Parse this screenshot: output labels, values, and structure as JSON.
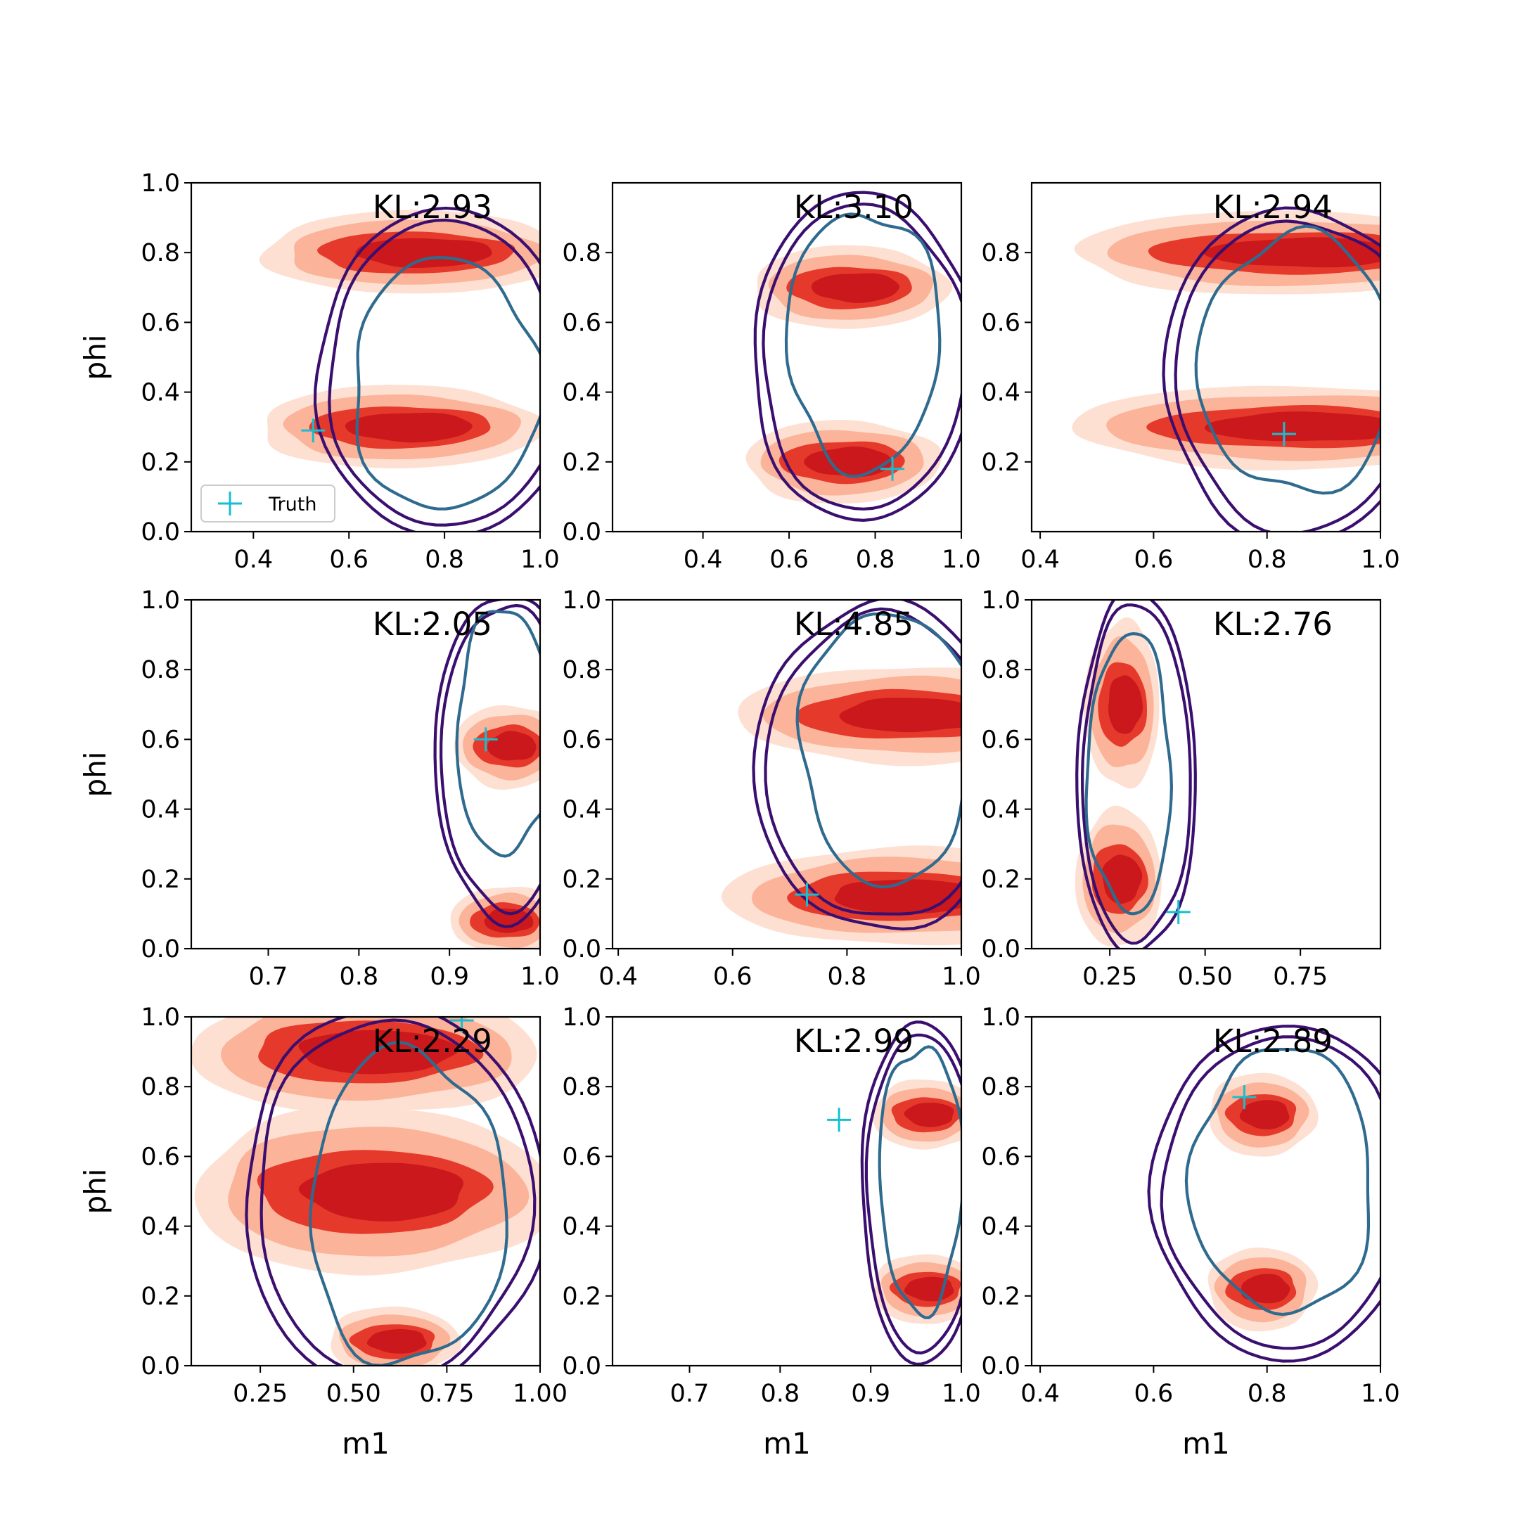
{
  "figure": {
    "ylabel": "phi",
    "xlabel": "m1",
    "legend_label": "Truth",
    "colors": {
      "truth": "#17becf",
      "outer_contour": "#3b0f6f",
      "inner_contour": "#2f6b8e",
      "kde_light": "#fde0d2",
      "kde_mid": "#fbb49a",
      "kde_dark": "#e53a2b",
      "kde_darkest": "#cb181d"
    }
  },
  "chart_data": [
    {
      "type": "contour",
      "kl": "KL:2.93",
      "truth": [
        0.525,
        0.29
      ],
      "xlim": [
        0.27,
        1.0
      ],
      "ylim": [
        0.0,
        1.0
      ],
      "xticks": [
        0.4,
        0.6,
        0.8,
        1.0
      ],
      "xtick_labels": [
        "0.4",
        "0.6",
        "0.8",
        "1.0"
      ],
      "yticks": [
        0.0,
        0.2,
        0.4,
        0.6,
        0.8,
        1.0
      ],
      "ytick_labels": [
        "0.0",
        "0.2",
        "0.4",
        "0.6",
        "0.8",
        "1.0"
      ],
      "modes": [
        0.8,
        0.3
      ],
      "legend": "lower-left",
      "ylabel": "phi",
      "xlabel": ""
    },
    {
      "type": "contour",
      "kl": "KL:3.10",
      "truth": [
        0.84,
        0.18
      ],
      "xlim": [
        0.19,
        1.0
      ],
      "ylim": [
        0.0,
        1.0
      ],
      "xticks": [
        0.4,
        0.6,
        0.8,
        1.0
      ],
      "xtick_labels": [
        "0.4",
        "0.6",
        "0.8",
        "1.0"
      ],
      "yticks": [
        0.0,
        0.2,
        0.4,
        0.6,
        0.8
      ],
      "ytick_labels": [
        "0.0",
        "0.2",
        "0.4",
        "0.6",
        "0.8"
      ],
      "modes": [
        0.7,
        0.2
      ],
      "ylabel": "",
      "xlabel": ""
    },
    {
      "type": "contour",
      "kl": "KL:2.94",
      "truth": [
        0.83,
        0.28
      ],
      "xlim": [
        0.385,
        1.0
      ],
      "ylim": [
        0.0,
        1.0
      ],
      "xticks": [
        0.4,
        0.6,
        0.8,
        1.0
      ],
      "xtick_labels": [
        "0.4",
        "0.6",
        "0.8",
        "1.0"
      ],
      "yticks": [
        0.2,
        0.4,
        0.6,
        0.8
      ],
      "ytick_labels": [
        "0.2",
        "0.4",
        "0.6",
        "0.8"
      ],
      "modes": [
        0.8,
        0.3
      ],
      "ylabel": "",
      "xlabel": ""
    },
    {
      "type": "contour",
      "kl": "KL:2.05",
      "truth": [
        0.94,
        0.6
      ],
      "xlim": [
        0.615,
        1.0
      ],
      "ylim": [
        0.0,
        1.0
      ],
      "xticks": [
        0.7,
        0.8,
        0.9,
        1.0
      ],
      "xtick_labels": [
        "0.7",
        "0.8",
        "0.9",
        "1.0"
      ],
      "yticks": [
        0.0,
        0.2,
        0.4,
        0.6,
        0.8,
        1.0
      ],
      "ytick_labels": [
        "0.0",
        "0.2",
        "0.4",
        "0.6",
        "0.8",
        "1.0"
      ],
      "modes": [
        0.58,
        0.08
      ],
      "ylabel": "phi",
      "xlabel": ""
    },
    {
      "type": "contour",
      "kl": "KL:4.85",
      "truth": [
        0.73,
        0.155
      ],
      "xlim": [
        0.39,
        1.0
      ],
      "ylim": [
        0.0,
        1.0
      ],
      "xticks": [
        0.4,
        0.6,
        0.8,
        1.0
      ],
      "xtick_labels": [
        "0.4",
        "0.6",
        "0.8",
        "1.0"
      ],
      "yticks": [
        0.0,
        0.2,
        0.4,
        0.6,
        0.8,
        1.0
      ],
      "ytick_labels": [
        "0.0",
        "0.2",
        "0.4",
        "0.6",
        "0.8",
        "1.0"
      ],
      "modes": [
        0.67,
        0.15
      ],
      "ylabel": "",
      "xlabel": ""
    },
    {
      "type": "contour",
      "kl": "KL:2.76",
      "truth": [
        0.43,
        0.105
      ],
      "xlim": [
        0.045,
        0.96
      ],
      "ylim": [
        0.0,
        1.0
      ],
      "xticks": [
        0.25,
        0.5,
        0.75
      ],
      "xtick_labels": [
        "0.25",
        "0.50",
        "0.75"
      ],
      "yticks": [
        0.0,
        0.2,
        0.4,
        0.6,
        0.8,
        1.0
      ],
      "ytick_labels": [
        "0.0",
        "0.2",
        "0.4",
        "0.6",
        "0.8",
        "1.0"
      ],
      "modes": [
        0.7,
        0.2
      ],
      "ylabel": "",
      "xlabel": ""
    },
    {
      "type": "contour",
      "kl": "KL:2.29",
      "truth": [
        0.79,
        0.99
      ],
      "xlim": [
        0.065,
        1.0
      ],
      "ylim": [
        0.0,
        1.0
      ],
      "xticks": [
        0.25,
        0.5,
        0.75,
        1.0
      ],
      "xtick_labels": [
        "0.25",
        "0.50",
        "0.75",
        "1.00"
      ],
      "yticks": [
        0.0,
        0.2,
        0.4,
        0.6,
        0.8,
        1.0
      ],
      "ytick_labels": [
        "0.0",
        "0.2",
        "0.4",
        "0.6",
        "0.8",
        "1.0"
      ],
      "modes": [
        0.9,
        0.5,
        0.07
      ],
      "ylabel": "phi",
      "xlabel": "m1"
    },
    {
      "type": "contour",
      "kl": "KL:2.99",
      "truth": [
        0.865,
        0.705
      ],
      "xlim": [
        0.615,
        1.0
      ],
      "ylim": [
        0.0,
        1.0
      ],
      "xticks": [
        0.7,
        0.8,
        0.9,
        1.0
      ],
      "xtick_labels": [
        "0.7",
        "0.8",
        "0.9",
        "1.0"
      ],
      "yticks": [
        0.0,
        0.2,
        0.4,
        0.6,
        0.8,
        1.0
      ],
      "ytick_labels": [
        "0.0",
        "0.2",
        "0.4",
        "0.6",
        "0.8",
        "1.0"
      ],
      "modes": [
        0.72,
        0.22
      ],
      "ylabel": "",
      "xlabel": "m1"
    },
    {
      "type": "contour",
      "kl": "KL:2.89",
      "truth": [
        0.76,
        0.77
      ],
      "xlim": [
        0.385,
        1.0
      ],
      "ylim": [
        0.0,
        1.0
      ],
      "xticks": [
        0.4,
        0.6,
        0.8,
        1.0
      ],
      "xtick_labels": [
        "0.4",
        "0.6",
        "0.8",
        "1.0"
      ],
      "yticks": [
        0.0,
        0.2,
        0.4,
        0.6,
        0.8,
        1.0
      ],
      "ytick_labels": [
        "0.0",
        "0.2",
        "0.4",
        "0.6",
        "0.8",
        "1.0"
      ],
      "modes": [
        0.72,
        0.22
      ],
      "ylabel": "",
      "xlabel": "m1"
    }
  ]
}
